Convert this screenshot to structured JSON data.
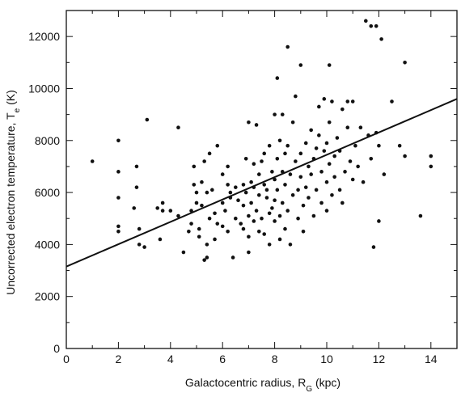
{
  "chart_data": {
    "type": "scatter",
    "title": "",
    "xlabel": "Galactocentric radius, R",
    "xlabel_sub": "G",
    "xlabel_unit": " (kpc)",
    "ylabel": "Uncorrected electron temperature, T",
    "ylabel_sub": "e",
    "ylabel_unit": " (K)",
    "xlim": [
      0,
      15
    ],
    "ylim": [
      0,
      13000
    ],
    "xticks": [
      0,
      2,
      4,
      6,
      8,
      10,
      12,
      14
    ],
    "yticks": [
      0,
      2000,
      4000,
      6000,
      8000,
      10000,
      12000
    ],
    "xtick_labels": [
      "0",
      "2",
      "4",
      "6",
      "8",
      "10",
      "12",
      "14"
    ],
    "ytick_labels": [
      "0",
      "2000",
      "4000",
      "6000",
      "8000",
      "10000",
      "12000"
    ],
    "grid": false,
    "fit_line": {
      "x": [
        0,
        15
      ],
      "y": [
        3150,
        9600
      ]
    },
    "points": [
      [
        1.0,
        7200
      ],
      [
        2.0,
        8000
      ],
      [
        2.0,
        6800
      ],
      [
        2.0,
        5800
      ],
      [
        2.0,
        4700
      ],
      [
        2.0,
        4500
      ],
      [
        2.6,
        5400
      ],
      [
        2.7,
        6200
      ],
      [
        2.7,
        7000
      ],
      [
        2.8,
        4600
      ],
      [
        2.8,
        4000
      ],
      [
        3.0,
        3900
      ],
      [
        3.1,
        8800
      ],
      [
        3.5,
        5400
      ],
      [
        3.6,
        4200
      ],
      [
        3.7,
        5300
      ],
      [
        3.7,
        5600
      ],
      [
        4.0,
        5300
      ],
      [
        4.3,
        8500
      ],
      [
        4.3,
        5100
      ],
      [
        4.5,
        3700
      ],
      [
        4.7,
        4500
      ],
      [
        4.8,
        4800
      ],
      [
        4.8,
        5300
      ],
      [
        4.9,
        6300
      ],
      [
        4.9,
        7000
      ],
      [
        5.0,
        6000
      ],
      [
        5.0,
        5600
      ],
      [
        5.1,
        4600
      ],
      [
        5.1,
        4300
      ],
      [
        5.2,
        5500
      ],
      [
        5.2,
        6400
      ],
      [
        5.3,
        7200
      ],
      [
        5.3,
        3400
      ],
      [
        5.4,
        3500
      ],
      [
        5.4,
        4000
      ],
      [
        5.4,
        6000
      ],
      [
        5.5,
        7500
      ],
      [
        5.5,
        5000
      ],
      [
        5.6,
        6100
      ],
      [
        5.7,
        4200
      ],
      [
        5.7,
        5200
      ],
      [
        5.8,
        4800
      ],
      [
        5.8,
        7800
      ],
      [
        6.0,
        6700
      ],
      [
        6.0,
        5600
      ],
      [
        6.0,
        4700
      ],
      [
        6.1,
        5300
      ],
      [
        6.2,
        6300
      ],
      [
        6.2,
        7000
      ],
      [
        6.2,
        4500
      ],
      [
        6.3,
        5800
      ],
      [
        6.3,
        6000
      ],
      [
        6.4,
        3500
      ],
      [
        6.5,
        5000
      ],
      [
        6.5,
        6200
      ],
      [
        6.6,
        5700
      ],
      [
        6.7,
        4800
      ],
      [
        6.8,
        6300
      ],
      [
        6.8,
        5500
      ],
      [
        6.8,
        4600
      ],
      [
        6.9,
        7300
      ],
      [
        6.9,
        6000
      ],
      [
        7.0,
        3700
      ],
      [
        7.0,
        4300
      ],
      [
        7.0,
        5100
      ],
      [
        7.0,
        8700
      ],
      [
        7.1,
        5600
      ],
      [
        7.1,
        6400
      ],
      [
        7.2,
        6200
      ],
      [
        7.2,
        4900
      ],
      [
        7.2,
        7100
      ],
      [
        7.3,
        8600
      ],
      [
        7.3,
        5300
      ],
      [
        7.4,
        5900
      ],
      [
        7.4,
        4500
      ],
      [
        7.4,
        6700
      ],
      [
        7.5,
        7200
      ],
      [
        7.5,
        5000
      ],
      [
        7.6,
        6300
      ],
      [
        7.6,
        7500
      ],
      [
        7.6,
        4400
      ],
      [
        7.7,
        5800
      ],
      [
        7.7,
        6100
      ],
      [
        7.8,
        7800
      ],
      [
        7.8,
        5200
      ],
      [
        7.8,
        4000
      ],
      [
        7.9,
        6800
      ],
      [
        7.9,
        5400
      ],
      [
        8.0,
        9000
      ],
      [
        8.0,
        6500
      ],
      [
        8.0,
        5700
      ],
      [
        8.0,
        4900
      ],
      [
        8.1,
        7300
      ],
      [
        8.1,
        10400
      ],
      [
        8.1,
        6100
      ],
      [
        8.2,
        5100
      ],
      [
        8.2,
        4200
      ],
      [
        8.2,
        8000
      ],
      [
        8.3,
        6800
      ],
      [
        8.3,
        5600
      ],
      [
        8.3,
        9000
      ],
      [
        8.4,
        7500
      ],
      [
        8.4,
        6300
      ],
      [
        8.4,
        4600
      ],
      [
        8.5,
        11600
      ],
      [
        8.5,
        5300
      ],
      [
        8.5,
        7800
      ],
      [
        8.6,
        6700
      ],
      [
        8.6,
        4000
      ],
      [
        8.7,
        5900
      ],
      [
        8.7,
        8700
      ],
      [
        8.8,
        9700
      ],
      [
        8.8,
        7200
      ],
      [
        8.9,
        5000
      ],
      [
        8.9,
        6100
      ],
      [
        9.0,
        10900
      ],
      [
        9.0,
        7500
      ],
      [
        9.0,
        6600
      ],
      [
        9.1,
        5500
      ],
      [
        9.1,
        4500
      ],
      [
        9.2,
        7900
      ],
      [
        9.2,
        6200
      ],
      [
        9.3,
        7000
      ],
      [
        9.3,
        5800
      ],
      [
        9.4,
        8400
      ],
      [
        9.4,
        6700
      ],
      [
        9.5,
        7300
      ],
      [
        9.5,
        5100
      ],
      [
        9.6,
        6100
      ],
      [
        9.6,
        7700
      ],
      [
        9.7,
        9300
      ],
      [
        9.7,
        8200
      ],
      [
        9.8,
        6800
      ],
      [
        9.8,
        5600
      ],
      [
        9.9,
        7600
      ],
      [
        9.9,
        9600
      ],
      [
        10.0,
        7900
      ],
      [
        10.0,
        6400
      ],
      [
        10.0,
        5300
      ],
      [
        10.1,
        10900
      ],
      [
        10.1,
        8700
      ],
      [
        10.1,
        7100
      ],
      [
        10.2,
        5900
      ],
      [
        10.2,
        9500
      ],
      [
        10.3,
        6600
      ],
      [
        10.3,
        7400
      ],
      [
        10.4,
        8100
      ],
      [
        10.5,
        6100
      ],
      [
        10.5,
        7600
      ],
      [
        10.6,
        9200
      ],
      [
        10.6,
        5600
      ],
      [
        10.7,
        6800
      ],
      [
        10.8,
        8500
      ],
      [
        10.8,
        9500
      ],
      [
        10.9,
        7200
      ],
      [
        11.0,
        6500
      ],
      [
        11.0,
        9500
      ],
      [
        11.1,
        7800
      ],
      [
        11.2,
        7000
      ],
      [
        11.3,
        8500
      ],
      [
        11.4,
        6400
      ],
      [
        11.5,
        12600
      ],
      [
        11.6,
        8200
      ],
      [
        11.7,
        12400
      ],
      [
        11.7,
        7300
      ],
      [
        11.8,
        3900
      ],
      [
        11.9,
        12400
      ],
      [
        11.9,
        8300
      ],
      [
        12.0,
        7800
      ],
      [
        12.0,
        4900
      ],
      [
        12.1,
        11900
      ],
      [
        12.2,
        6700
      ],
      [
        12.5,
        9500
      ],
      [
        12.8,
        7800
      ],
      [
        13.0,
        11000
      ],
      [
        13.0,
        7400
      ],
      [
        13.6,
        5100
      ],
      [
        14.0,
        7400
      ],
      [
        14.0,
        7000
      ]
    ]
  }
}
